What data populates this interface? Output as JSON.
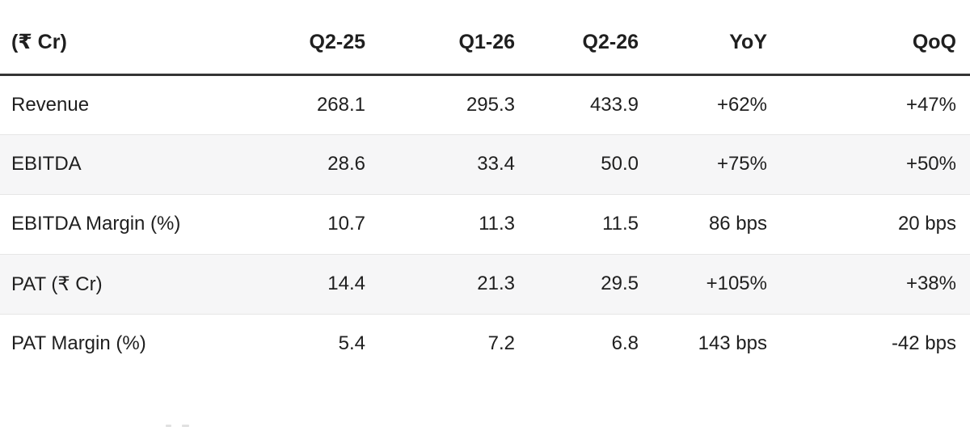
{
  "chart_data": {
    "type": "table",
    "columns": [
      "(₹ Cr)",
      "Q2-25",
      "Q1-26",
      "Q2-26",
      "YoY",
      "QoQ"
    ],
    "rows": [
      [
        "Revenue",
        "268.1",
        "295.3",
        "433.9",
        "+62%",
        "+47%"
      ],
      [
        "EBITDA",
        "28.6",
        "33.4",
        "50.0",
        "+75%",
        "+50%"
      ],
      [
        "EBITDA Margin (%)",
        "10.7",
        "11.3",
        "11.5",
        "86 bps",
        "20 bps"
      ],
      [
        "PAT (₹ Cr)",
        "14.4",
        "21.3",
        "29.5",
        "+105%",
        "+38%"
      ],
      [
        "PAT Margin (%)",
        "5.4",
        "7.2",
        "6.8",
        "143 bps",
        "-42 bps"
      ]
    ],
    "layout": {
      "first_column_align": "left",
      "value_columns_align": "right",
      "striped_rows": [
        2,
        4
      ],
      "header_rule": "thick-dark",
      "grid": "horizontal-dividers-only"
    }
  },
  "colors": {
    "text": "#1f1f1f",
    "header_rule": "#343434",
    "row_stripe": "#f6f6f7",
    "row_divider": "#e6e6e6",
    "bg": "#ffffff"
  }
}
